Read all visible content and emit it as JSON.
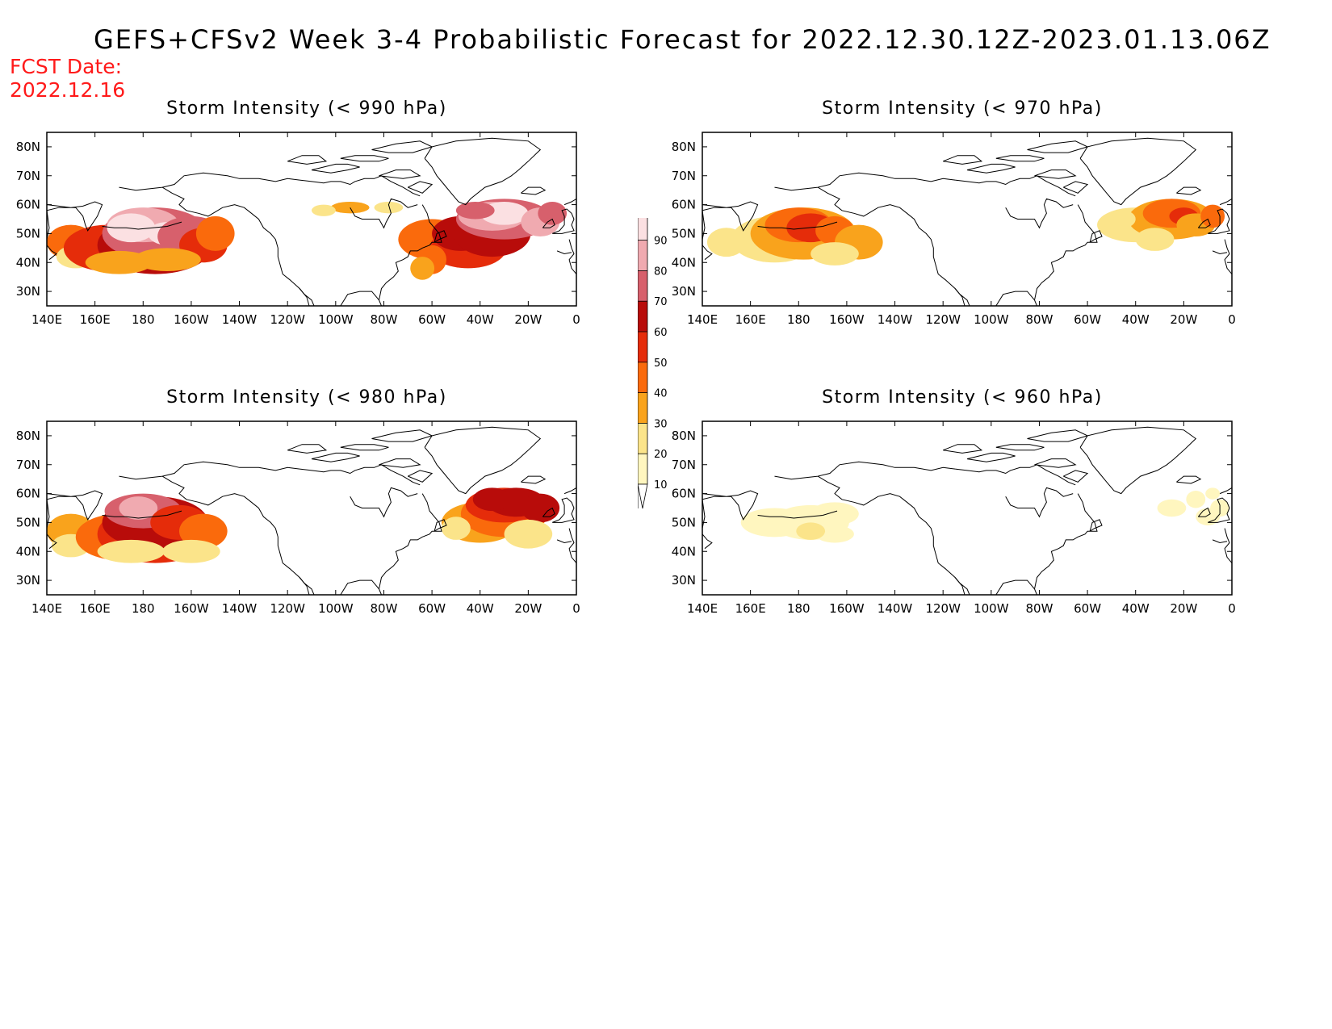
{
  "title": "GEFS+CFSv2 Week 3-4 Probabilistic Forecast for 2022.12.30.12Z-2023.01.13.06Z",
  "fcst_date_label": "FCST Date:",
  "fcst_date_value": "2022.12.16",
  "map_axes": {
    "lon_ticks": [
      "140E",
      "160E",
      "180",
      "160W",
      "140W",
      "120W",
      "100W",
      "80W",
      "60W",
      "40W",
      "20W",
      "0"
    ],
    "lat_ticks": [
      "80N",
      "70N",
      "60N",
      "50N",
      "40N",
      "30N"
    ]
  },
  "legend": {
    "levels": [
      "10",
      "20",
      "30",
      "40",
      "50",
      "60",
      "70",
      "80",
      "90"
    ],
    "colors": [
      "#fff6bf",
      "#fbe48a",
      "#f9a31c",
      "#fa6a0c",
      "#e52c0a",
      "#b80c0a",
      "#d7606c",
      "#f0aab0",
      "#fbe0e2"
    ]
  },
  "panels": [
    {
      "id": "p990",
      "title": "Storm Intensity (< 990 hPa)",
      "intensity": 1.0
    },
    {
      "id": "p970",
      "title": "Storm Intensity (< 970 hPa)",
      "intensity": 0.55
    },
    {
      "id": "p980",
      "title": "Storm Intensity (< 980 hPa)",
      "intensity": 0.78
    },
    {
      "id": "p960",
      "title": "Storm Intensity (< 960 hPa)",
      "intensity": 0.25
    }
  ]
}
